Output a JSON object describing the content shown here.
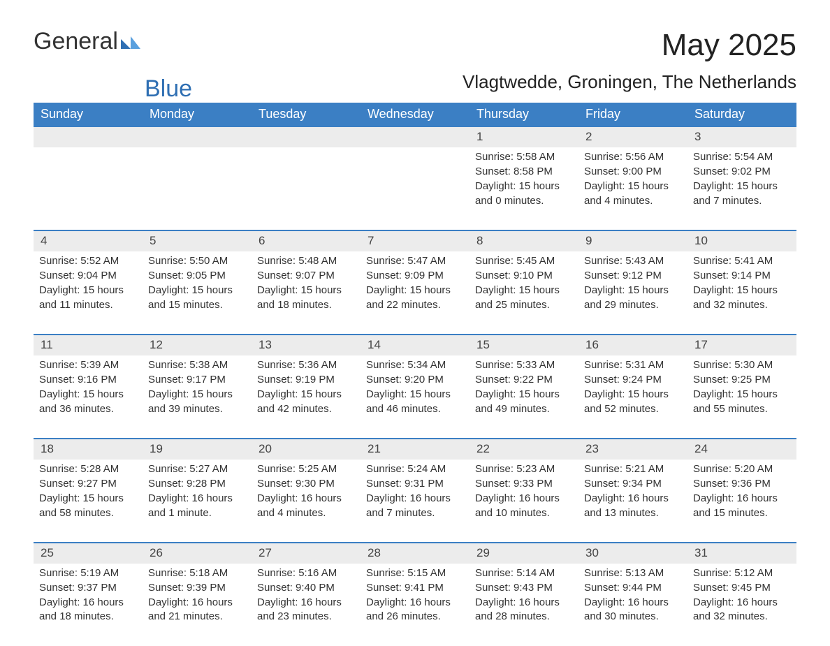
{
  "brand": {
    "word1": "General",
    "word2": "Blue"
  },
  "title": "May 2025",
  "location": "Vlagtwedde, Groningen, The Netherlands",
  "colors": {
    "header_bg": "#3b7fc4",
    "header_text": "#ffffff",
    "daynum_bg": "#ececec",
    "daynum_border": "#3b7fc4",
    "body_text": "#333333",
    "brand_blue": "#2f6fb3",
    "page_bg": "#ffffff"
  },
  "typography": {
    "title_fontsize": 44,
    "location_fontsize": 26,
    "dayheader_fontsize": 18,
    "daynum_fontsize": 17,
    "cell_fontsize": 15,
    "logo_fontsize": 34
  },
  "layout": {
    "columns": 7,
    "week_start": "Sunday"
  },
  "day_headers": [
    "Sunday",
    "Monday",
    "Tuesday",
    "Wednesday",
    "Thursday",
    "Friday",
    "Saturday"
  ],
  "weeks": [
    [
      null,
      null,
      null,
      null,
      {
        "n": "1",
        "sunrise": "5:58 AM",
        "sunset": "8:58 PM",
        "daylight": "15 hours and 0 minutes."
      },
      {
        "n": "2",
        "sunrise": "5:56 AM",
        "sunset": "9:00 PM",
        "daylight": "15 hours and 4 minutes."
      },
      {
        "n": "3",
        "sunrise": "5:54 AM",
        "sunset": "9:02 PM",
        "daylight": "15 hours and 7 minutes."
      }
    ],
    [
      {
        "n": "4",
        "sunrise": "5:52 AM",
        "sunset": "9:04 PM",
        "daylight": "15 hours and 11 minutes."
      },
      {
        "n": "5",
        "sunrise": "5:50 AM",
        "sunset": "9:05 PM",
        "daylight": "15 hours and 15 minutes."
      },
      {
        "n": "6",
        "sunrise": "5:48 AM",
        "sunset": "9:07 PM",
        "daylight": "15 hours and 18 minutes."
      },
      {
        "n": "7",
        "sunrise": "5:47 AM",
        "sunset": "9:09 PM",
        "daylight": "15 hours and 22 minutes."
      },
      {
        "n": "8",
        "sunrise": "5:45 AM",
        "sunset": "9:10 PM",
        "daylight": "15 hours and 25 minutes."
      },
      {
        "n": "9",
        "sunrise": "5:43 AM",
        "sunset": "9:12 PM",
        "daylight": "15 hours and 29 minutes."
      },
      {
        "n": "10",
        "sunrise": "5:41 AM",
        "sunset": "9:14 PM",
        "daylight": "15 hours and 32 minutes."
      }
    ],
    [
      {
        "n": "11",
        "sunrise": "5:39 AM",
        "sunset": "9:16 PM",
        "daylight": "15 hours and 36 minutes."
      },
      {
        "n": "12",
        "sunrise": "5:38 AM",
        "sunset": "9:17 PM",
        "daylight": "15 hours and 39 minutes."
      },
      {
        "n": "13",
        "sunrise": "5:36 AM",
        "sunset": "9:19 PM",
        "daylight": "15 hours and 42 minutes."
      },
      {
        "n": "14",
        "sunrise": "5:34 AM",
        "sunset": "9:20 PM",
        "daylight": "15 hours and 46 minutes."
      },
      {
        "n": "15",
        "sunrise": "5:33 AM",
        "sunset": "9:22 PM",
        "daylight": "15 hours and 49 minutes."
      },
      {
        "n": "16",
        "sunrise": "5:31 AM",
        "sunset": "9:24 PM",
        "daylight": "15 hours and 52 minutes."
      },
      {
        "n": "17",
        "sunrise": "5:30 AM",
        "sunset": "9:25 PM",
        "daylight": "15 hours and 55 minutes."
      }
    ],
    [
      {
        "n": "18",
        "sunrise": "5:28 AM",
        "sunset": "9:27 PM",
        "daylight": "15 hours and 58 minutes."
      },
      {
        "n": "19",
        "sunrise": "5:27 AM",
        "sunset": "9:28 PM",
        "daylight": "16 hours and 1 minute."
      },
      {
        "n": "20",
        "sunrise": "5:25 AM",
        "sunset": "9:30 PM",
        "daylight": "16 hours and 4 minutes."
      },
      {
        "n": "21",
        "sunrise": "5:24 AM",
        "sunset": "9:31 PM",
        "daylight": "16 hours and 7 minutes."
      },
      {
        "n": "22",
        "sunrise": "5:23 AM",
        "sunset": "9:33 PM",
        "daylight": "16 hours and 10 minutes."
      },
      {
        "n": "23",
        "sunrise": "5:21 AM",
        "sunset": "9:34 PM",
        "daylight": "16 hours and 13 minutes."
      },
      {
        "n": "24",
        "sunrise": "5:20 AM",
        "sunset": "9:36 PM",
        "daylight": "16 hours and 15 minutes."
      }
    ],
    [
      {
        "n": "25",
        "sunrise": "5:19 AM",
        "sunset": "9:37 PM",
        "daylight": "16 hours and 18 minutes."
      },
      {
        "n": "26",
        "sunrise": "5:18 AM",
        "sunset": "9:39 PM",
        "daylight": "16 hours and 21 minutes."
      },
      {
        "n": "27",
        "sunrise": "5:16 AM",
        "sunset": "9:40 PM",
        "daylight": "16 hours and 23 minutes."
      },
      {
        "n": "28",
        "sunrise": "5:15 AM",
        "sunset": "9:41 PM",
        "daylight": "16 hours and 26 minutes."
      },
      {
        "n": "29",
        "sunrise": "5:14 AM",
        "sunset": "9:43 PM",
        "daylight": "16 hours and 28 minutes."
      },
      {
        "n": "30",
        "sunrise": "5:13 AM",
        "sunset": "9:44 PM",
        "daylight": "16 hours and 30 minutes."
      },
      {
        "n": "31",
        "sunrise": "5:12 AM",
        "sunset": "9:45 PM",
        "daylight": "16 hours and 32 minutes."
      }
    ]
  ],
  "labels": {
    "sunrise": "Sunrise: ",
    "sunset": "Sunset: ",
    "daylight": "Daylight: "
  }
}
